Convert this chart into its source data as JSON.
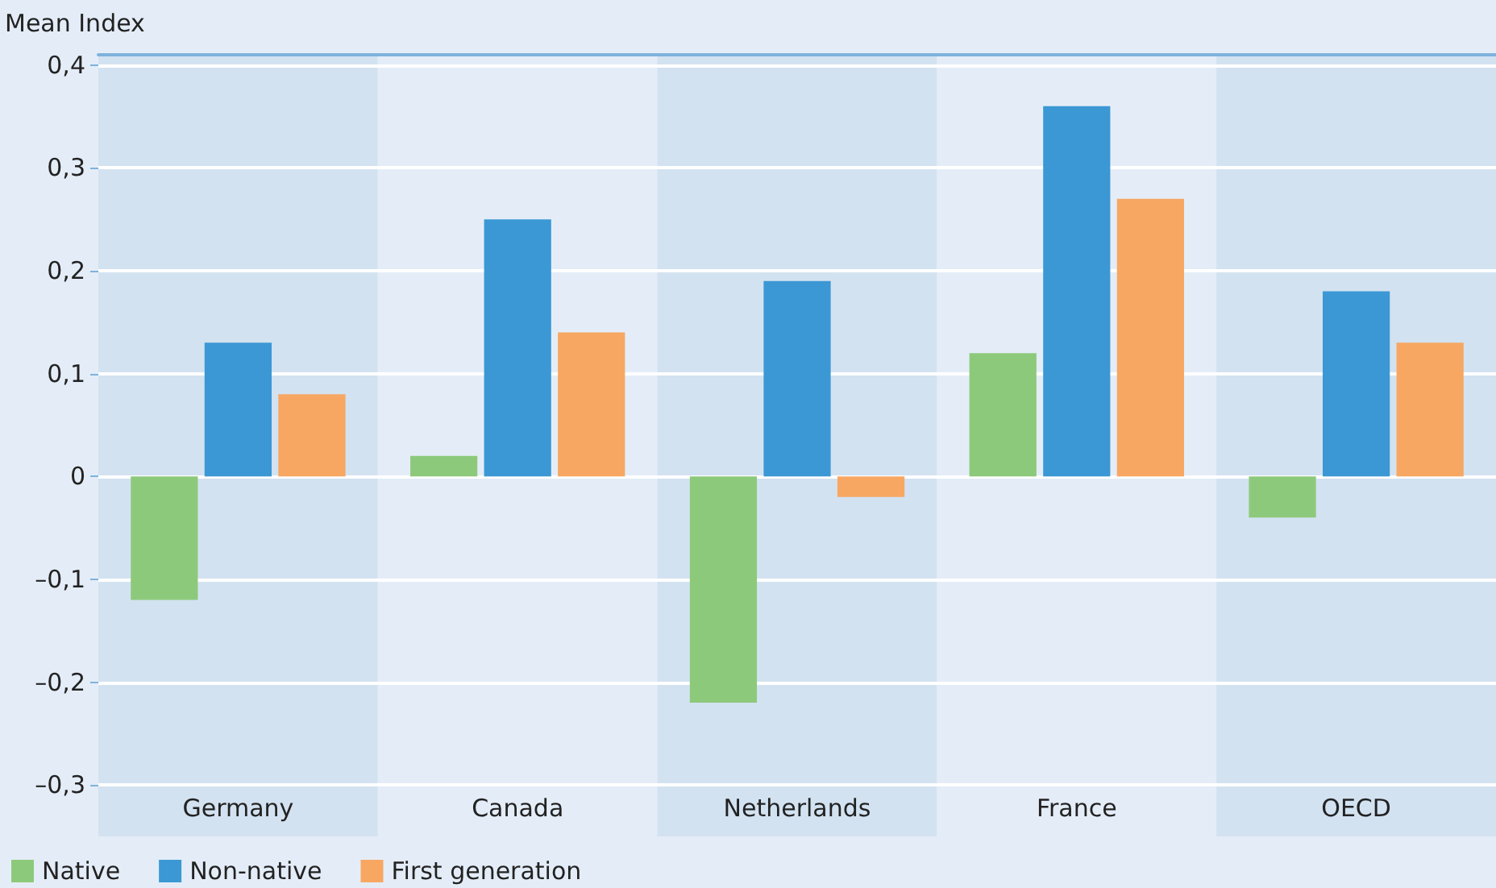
{
  "chart_data": {
    "type": "bar",
    "ylabel": "Mean Index",
    "categories": [
      "Germany",
      "Canada",
      "Netherlands",
      "France",
      "OECD"
    ],
    "series": [
      {
        "name": "Native",
        "color": "#8dc97b",
        "values": [
          -0.12,
          0.02,
          -0.22,
          0.12,
          -0.04
        ]
      },
      {
        "name": "Non-native",
        "color": "#3b98d4",
        "values": [
          0.13,
          0.25,
          0.19,
          0.36,
          0.18
        ]
      },
      {
        "name": "First generation",
        "color": "#f7a762",
        "values": [
          0.08,
          0.14,
          -0.02,
          0.27,
          0.13
        ]
      }
    ],
    "ylim": [
      -0.35,
      0.41
    ],
    "yticks": [
      {
        "value": -0.3,
        "label": "–0,3"
      },
      {
        "value": -0.2,
        "label": "–0,2"
      },
      {
        "value": -0.1,
        "label": "–0,1"
      },
      {
        "value": 0,
        "label": "0"
      },
      {
        "value": 0.1,
        "label": "0,1"
      },
      {
        "value": 0.2,
        "label": "0,2"
      },
      {
        "value": 0.3,
        "label": "0,3"
      },
      {
        "value": 0.4,
        "label": "0,4"
      }
    ],
    "grid": "y",
    "legend": "bottom left"
  }
}
